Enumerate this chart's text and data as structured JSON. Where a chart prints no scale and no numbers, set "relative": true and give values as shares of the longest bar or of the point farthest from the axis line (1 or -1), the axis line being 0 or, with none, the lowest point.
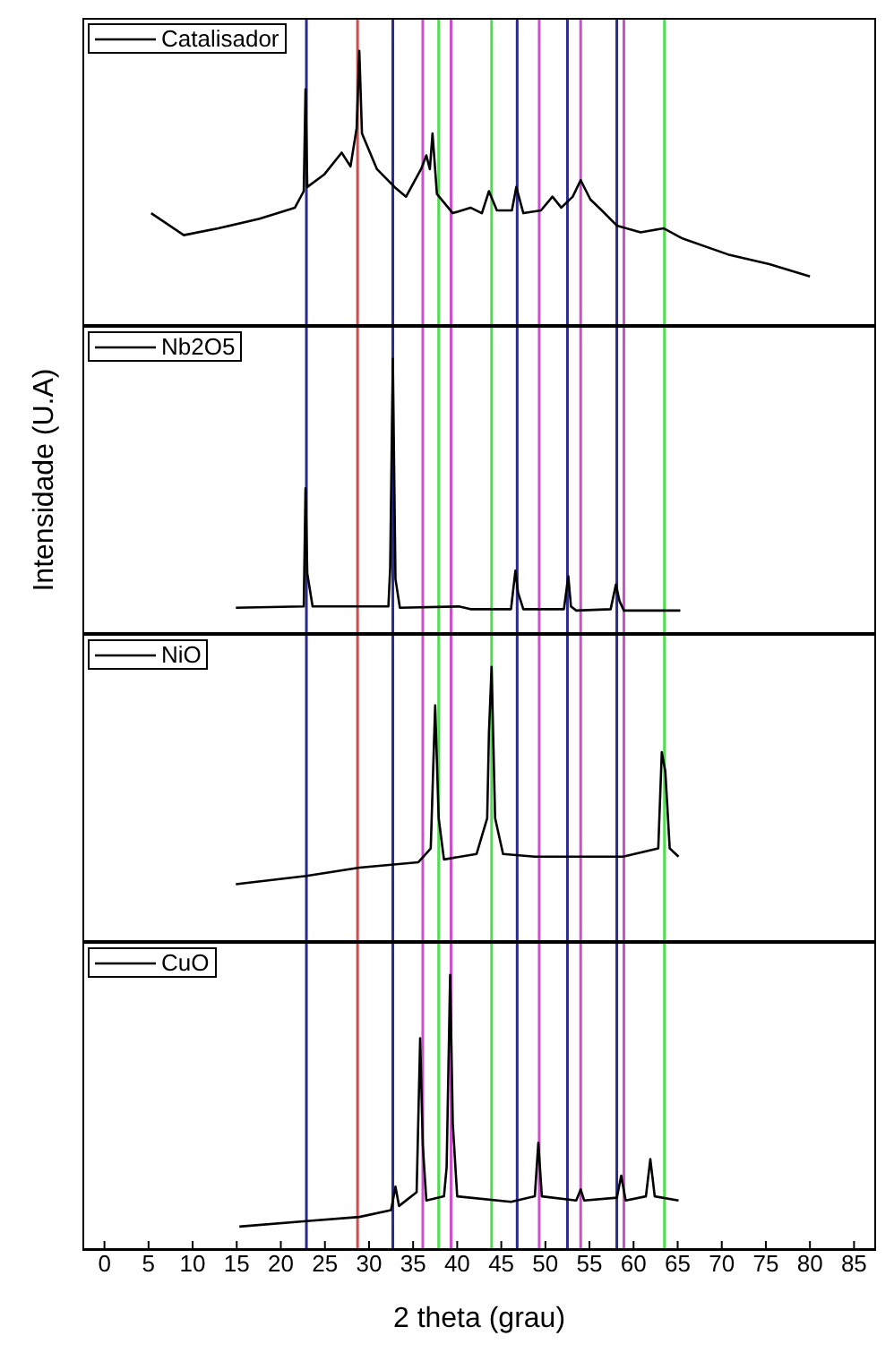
{
  "chart_data": [
    {
      "type": "line",
      "relative": true,
      "legend": "top left",
      "marker": "none",
      "tick_labels": false,
      "xlim": [
        -2.5,
        87.5
      ],
      "xticks": [
        0,
        5,
        10,
        15,
        20,
        25,
        30,
        35,
        40,
        45,
        50,
        55,
        60,
        65,
        70,
        75,
        80,
        85
      ],
      "x": [
        5.3,
        9.0,
        12.9,
        17.6,
        21.6,
        22.6,
        22.8,
        23.0,
        24.9,
        26.9,
        27.9,
        28.6,
        28.9,
        29.2,
        30.9,
        32.9,
        34.2,
        35.9,
        36.5,
        36.9,
        37.2,
        37.7,
        39.5,
        41.5,
        42.8,
        43.6,
        44.5,
        46.2,
        46.7,
        47.5,
        49.5,
        50.8,
        51.8,
        53.1,
        54.0,
        55.1,
        56.4,
        58.1,
        60.8,
        63.4,
        65.4,
        70.7,
        75.4,
        80.0
      ],
      "series": [
        {
          "name": "Catalisador",
          "color": "#000000",
          "values": [
            0.41,
            0.33,
            0.355,
            0.39,
            0.43,
            0.49,
            0.86,
            0.505,
            0.55,
            0.63,
            0.58,
            0.72,
            1.0,
            0.7,
            0.57,
            0.505,
            0.47,
            0.57,
            0.62,
            0.57,
            0.7,
            0.48,
            0.41,
            0.43,
            0.41,
            0.49,
            0.42,
            0.42,
            0.505,
            0.41,
            0.42,
            0.47,
            0.43,
            0.47,
            0.53,
            0.46,
            0.42,
            0.365,
            0.34,
            0.355,
            0.32,
            0.26,
            0.225,
            0.18
          ]
        }
      ],
      "ref_lines": [
        {
          "axis": "x",
          "value": 22.9,
          "color": "#2a2a90"
        },
        {
          "axis": "x",
          "value": 28.7,
          "color": "#c85050"
        },
        {
          "axis": "x",
          "value": 32.7,
          "color": "#2a2a90"
        },
        {
          "axis": "x",
          "value": 36.1,
          "color": "#cc4fcc"
        },
        {
          "axis": "x",
          "value": 37.9,
          "color": "#50dd50"
        },
        {
          "axis": "x",
          "value": 39.3,
          "color": "#cc4fcc"
        },
        {
          "axis": "x",
          "value": 43.9,
          "color": "#50dd50"
        },
        {
          "axis": "x",
          "value": 46.8,
          "color": "#2a2a90"
        },
        {
          "axis": "x",
          "value": 49.3,
          "color": "#cc4fcc"
        },
        {
          "axis": "x",
          "value": 52.5,
          "color": "#2a2a90"
        },
        {
          "axis": "x",
          "value": 54.0,
          "color": "#cc4fcc"
        },
        {
          "axis": "x",
          "value": 58.1,
          "color": "#2a2a90"
        },
        {
          "axis": "x",
          "value": 58.9,
          "color": "#cc4fcc"
        },
        {
          "axis": "x",
          "value": 63.5,
          "color": "#50dd50"
        }
      ]
    },
    {
      "type": "line",
      "relative": true,
      "legend": "top left",
      "marker": "none",
      "ylabel": "Intensidade (U.A)",
      "tick_labels": false,
      "xlim": [
        -2.5,
        87.5
      ],
      "xticks": [
        0,
        5,
        10,
        15,
        20,
        25,
        30,
        35,
        40,
        45,
        50,
        55,
        60,
        65,
        70,
        75,
        80,
        85
      ],
      "x": [
        14.9,
        22.6,
        22.8,
        23.0,
        23.6,
        32.2,
        32.4,
        32.7,
        33.0,
        33.5,
        40.2,
        41.5,
        46.1,
        46.6,
        46.9,
        47.5,
        52.1,
        52.6,
        52.9,
        53.5,
        57.4,
        58.0,
        58.4,
        58.9,
        65.3
      ],
      "series": [
        {
          "name": "Nb2O5",
          "color": "#000000",
          "values": [
            0.095,
            0.1,
            0.53,
            0.22,
            0.1,
            0.1,
            0.24,
            1.0,
            0.2,
            0.095,
            0.1,
            0.09,
            0.09,
            0.23,
            0.15,
            0.09,
            0.09,
            0.21,
            0.1,
            0.085,
            0.09,
            0.18,
            0.12,
            0.085,
            0.085
          ]
        }
      ],
      "ref_lines": [
        {
          "axis": "x",
          "value": 22.9,
          "color": "#2a2a90"
        },
        {
          "axis": "x",
          "value": 28.7,
          "color": "#c85050"
        },
        {
          "axis": "x",
          "value": 32.7,
          "color": "#2a2a90"
        },
        {
          "axis": "x",
          "value": 36.1,
          "color": "#cc4fcc"
        },
        {
          "axis": "x",
          "value": 37.9,
          "color": "#50dd50"
        },
        {
          "axis": "x",
          "value": 39.3,
          "color": "#cc4fcc"
        },
        {
          "axis": "x",
          "value": 43.9,
          "color": "#50dd50"
        },
        {
          "axis": "x",
          "value": 46.8,
          "color": "#2a2a90"
        },
        {
          "axis": "x",
          "value": 49.3,
          "color": "#cc4fcc"
        },
        {
          "axis": "x",
          "value": 52.5,
          "color": "#2a2a90"
        },
        {
          "axis": "x",
          "value": 54.0,
          "color": "#cc4fcc"
        },
        {
          "axis": "x",
          "value": 58.1,
          "color": "#2a2a90"
        },
        {
          "axis": "x",
          "value": 58.9,
          "color": "#cc4fcc"
        },
        {
          "axis": "x",
          "value": 63.5,
          "color": "#50dd50"
        }
      ]
    },
    {
      "type": "line",
      "relative": true,
      "legend": "top left",
      "marker": "none",
      "tick_labels": false,
      "xlim": [
        -2.5,
        87.5
      ],
      "xticks": [
        0,
        5,
        10,
        15,
        20,
        25,
        30,
        35,
        40,
        45,
        50,
        55,
        60,
        65,
        70,
        75,
        80,
        85
      ],
      "x": [
        14.9,
        22.9,
        28.9,
        35.6,
        37.0,
        37.5,
        37.9,
        38.5,
        42.2,
        43.4,
        43.6,
        43.9,
        44.3,
        45.2,
        48.8,
        58.8,
        62.8,
        63.2,
        63.6,
        64.1,
        65.1
      ],
      "series": [
        {
          "name": "NiO",
          "color": "#000000",
          "values": [
            0.21,
            0.24,
            0.27,
            0.29,
            0.34,
            0.86,
            0.45,
            0.3,
            0.32,
            0.45,
            0.76,
            1.0,
            0.45,
            0.32,
            0.31,
            0.31,
            0.34,
            0.69,
            0.62,
            0.34,
            0.31
          ]
        }
      ],
      "ref_lines": [
        {
          "axis": "x",
          "value": 22.9,
          "color": "#2a2a90"
        },
        {
          "axis": "x",
          "value": 28.7,
          "color": "#c85050"
        },
        {
          "axis": "x",
          "value": 32.7,
          "color": "#2a2a90"
        },
        {
          "axis": "x",
          "value": 36.1,
          "color": "#cc4fcc"
        },
        {
          "axis": "x",
          "value": 37.9,
          "color": "#50dd50"
        },
        {
          "axis": "x",
          "value": 39.3,
          "color": "#cc4fcc"
        },
        {
          "axis": "x",
          "value": 43.9,
          "color": "#50dd50"
        },
        {
          "axis": "x",
          "value": 46.8,
          "color": "#2a2a90"
        },
        {
          "axis": "x",
          "value": 49.3,
          "color": "#cc4fcc"
        },
        {
          "axis": "x",
          "value": 52.5,
          "color": "#2a2a90"
        },
        {
          "axis": "x",
          "value": 54.0,
          "color": "#cc4fcc"
        },
        {
          "axis": "x",
          "value": 58.1,
          "color": "#2a2a90"
        },
        {
          "axis": "x",
          "value": 58.9,
          "color": "#cc4fcc"
        },
        {
          "axis": "x",
          "value": 63.5,
          "color": "#50dd50"
        }
      ]
    },
    {
      "type": "line",
      "relative": true,
      "legend": "top left",
      "marker": "none",
      "xlabel": "2 theta (grau)",
      "tick_labels": "x",
      "xlim": [
        -2.5,
        87.5
      ],
      "xticks": [
        0,
        5,
        10,
        15,
        20,
        25,
        30,
        35,
        40,
        45,
        50,
        55,
        60,
        65,
        70,
        75,
        80,
        85
      ],
      "x": [
        15.3,
        22.9,
        28.9,
        32.5,
        33.0,
        33.4,
        35.4,
        35.8,
        36.1,
        36.5,
        38.5,
        38.8,
        39.2,
        39.5,
        40.0,
        46.1,
        48.8,
        49.2,
        49.6,
        53.5,
        54.0,
        54.4,
        58.1,
        58.6,
        59.1,
        61.4,
        61.9,
        62.4,
        65.1
      ],
      "series": [
        {
          "name": "CuO",
          "color": "#000000",
          "values": [
            0.085,
            0.105,
            0.12,
            0.145,
            0.23,
            0.16,
            0.21,
            0.77,
            0.38,
            0.18,
            0.195,
            0.3,
            1.0,
            0.46,
            0.195,
            0.175,
            0.195,
            0.39,
            0.195,
            0.18,
            0.22,
            0.18,
            0.19,
            0.27,
            0.18,
            0.195,
            0.33,
            0.195,
            0.18
          ]
        }
      ],
      "ref_lines": [
        {
          "axis": "x",
          "value": 22.9,
          "color": "#2a2a90"
        },
        {
          "axis": "x",
          "value": 28.7,
          "color": "#c85050"
        },
        {
          "axis": "x",
          "value": 32.7,
          "color": "#2a2a90"
        },
        {
          "axis": "x",
          "value": 36.1,
          "color": "#cc4fcc"
        },
        {
          "axis": "x",
          "value": 37.9,
          "color": "#50dd50"
        },
        {
          "axis": "x",
          "value": 39.3,
          "color": "#cc4fcc"
        },
        {
          "axis": "x",
          "value": 43.9,
          "color": "#50dd50"
        },
        {
          "axis": "x",
          "value": 46.8,
          "color": "#2a2a90"
        },
        {
          "axis": "x",
          "value": 49.3,
          "color": "#cc4fcc"
        },
        {
          "axis": "x",
          "value": 52.5,
          "color": "#2a2a90"
        },
        {
          "axis": "x",
          "value": 54.0,
          "color": "#cc4fcc"
        },
        {
          "axis": "x",
          "value": 58.1,
          "color": "#2a2a90"
        },
        {
          "axis": "x",
          "value": 58.9,
          "color": "#cc4fcc"
        },
        {
          "axis": "x",
          "value": 63.5,
          "color": "#50dd50"
        }
      ]
    }
  ]
}
